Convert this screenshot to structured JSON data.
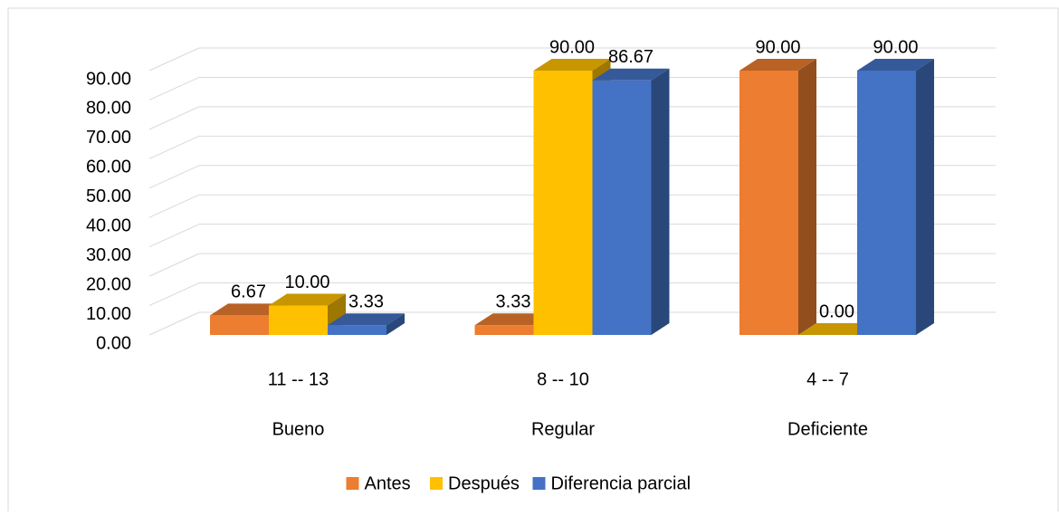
{
  "chart_data": {
    "type": "bar3d",
    "categories": [
      "11 -- 13",
      "8 -- 10",
      "4 -- 7"
    ],
    "groups": [
      "Bueno",
      "Regular",
      "Deficiente"
    ],
    "series": [
      {
        "name": "Antes",
        "color": "#ED7D31",
        "values": [
          6.67,
          3.33,
          90
        ],
        "value_labels": [
          "6.67",
          "3.33",
          "90.00"
        ]
      },
      {
        "name": "Después",
        "color": "#FFC000",
        "values": [
          10,
          90,
          0
        ],
        "value_labels": [
          "10.00",
          "90.00",
          "0.00"
        ]
      },
      {
        "name": "Diferencia parcial",
        "color": "#4472C4",
        "values": [
          3.33,
          86.67,
          90
        ],
        "value_labels": [
          "3.33",
          "86.67",
          "90.00"
        ]
      }
    ],
    "ylim": [
      0,
      90
    ],
    "yticks": [
      {
        "value": 0,
        "label": "0.00"
      },
      {
        "value": 10,
        "label": "10.00"
      },
      {
        "value": 20,
        "label": "20.00"
      },
      {
        "value": 30,
        "label": "30.00"
      },
      {
        "value": 40,
        "label": "40.00"
      },
      {
        "value": 50,
        "label": "50.00"
      },
      {
        "value": 60,
        "label": "60.00"
      },
      {
        "value": 70,
        "label": "70.00"
      },
      {
        "value": 80,
        "label": "80.00"
      },
      {
        "value": 90,
        "label": "90.00"
      }
    ],
    "grid": true,
    "legend": "bottom"
  }
}
